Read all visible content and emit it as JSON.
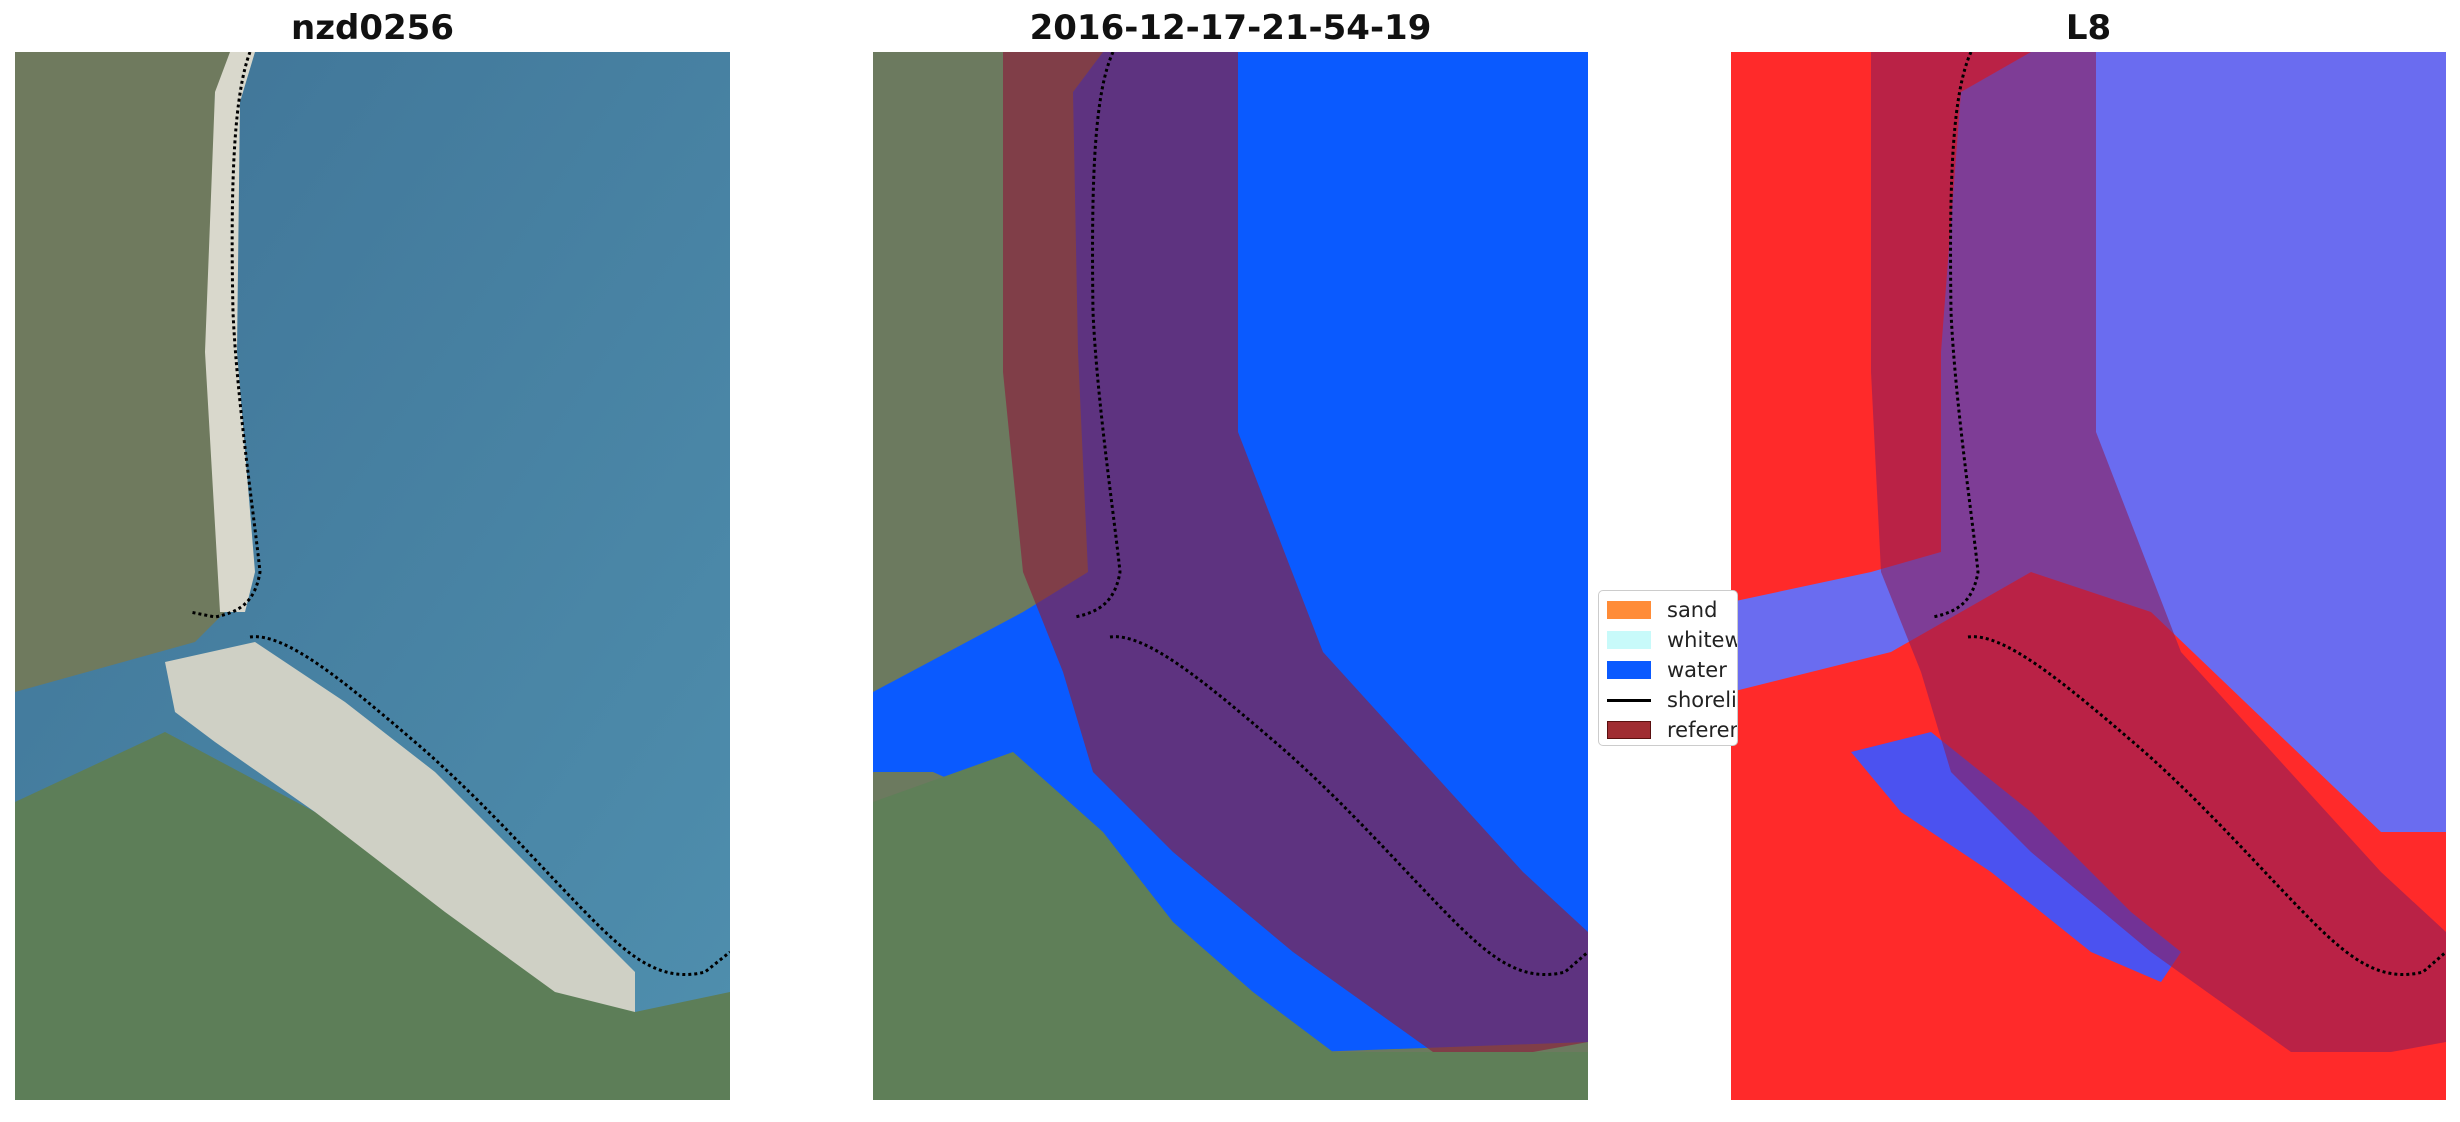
{
  "panels": [
    {
      "title": "nzd0256",
      "kind": "rgb"
    },
    {
      "title": "2016-12-17-21-54-19",
      "kind": "classified"
    },
    {
      "title": "L8",
      "kind": "index"
    }
  ],
  "legend": {
    "items": [
      {
        "label": "sand",
        "color": "#ff8c38"
      },
      {
        "label": "whitewater",
        "color": "#c8fafa"
      },
      {
        "label": "water",
        "color": "#0a5aff"
      },
      {
        "label": "shoreline",
        "color": "#000000"
      },
      {
        "label": "reference",
        "color": "#a02d32"
      }
    ]
  },
  "colors": {
    "water_class": "#0a5aff",
    "reference_buffer": "#8c1e3c",
    "shoreline": "#000000",
    "index_positive": "#ff2020",
    "index_negative": "#6a6cf0"
  }
}
